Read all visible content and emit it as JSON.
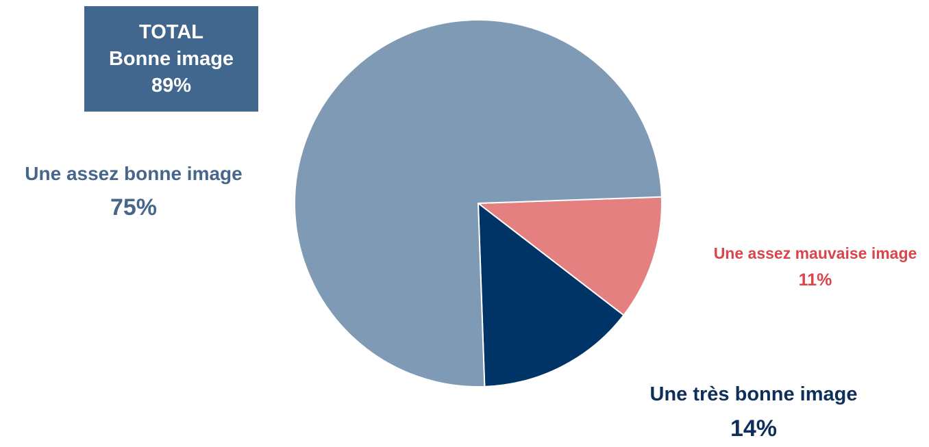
{
  "total_box": {
    "line1": "TOTAL",
    "line2": "Bonne image",
    "line3": "89%"
  },
  "labels": {
    "assez_bonne": {
      "name": "Une assez bonne image",
      "pct": "75%"
    },
    "mauvaise": {
      "name": "Une assez mauvaise image",
      "pct": "11%"
    },
    "tres_bonne": {
      "name": "Une très bonne image",
      "pct": "14%"
    }
  },
  "chart_data": {
    "type": "pie",
    "categories": [
      "Une assez mauvaise image",
      "Une très bonne image",
      "Une assez bonne image"
    ],
    "values": [
      11,
      14,
      75
    ],
    "unit": "%",
    "colors": [
      "#e58080",
      "#003366",
      "#7f9ab4"
    ],
    "start_angle_deg": -2
  }
}
